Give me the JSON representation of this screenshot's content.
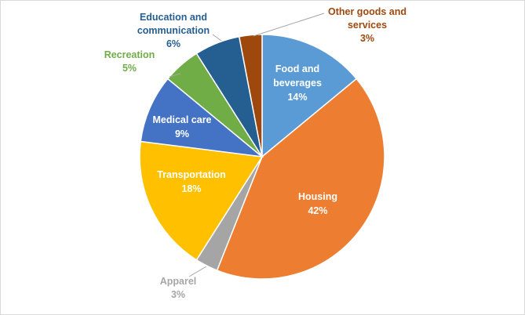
{
  "chart_data": {
    "type": "pie",
    "title": "",
    "start_angle_deg": 0,
    "direction": "clockwise",
    "slices": [
      {
        "name": "Food and beverages",
        "value": 14,
        "pct": "14%",
        "color": "#5b9bd5",
        "label_lines": [
          "Food and",
          "beverages",
          "14%"
        ],
        "label_style": "inside"
      },
      {
        "name": "Housing",
        "value": 42,
        "pct": "42%",
        "color": "#ed7d31",
        "label_lines": [
          "Housing",
          "42%"
        ],
        "label_style": "inside"
      },
      {
        "name": "Apparel",
        "value": 3,
        "pct": "3%",
        "color": "#a5a5a5",
        "label_lines": [
          "Apparel",
          "3%"
        ],
        "label_style": "outside-gray"
      },
      {
        "name": "Transportation",
        "value": 18,
        "pct": "18%",
        "color": "#ffc000",
        "label_lines": [
          "Transportation",
          "18%"
        ],
        "label_style": "inside"
      },
      {
        "name": "Medical care",
        "value": 9,
        "pct": "9%",
        "color": "#4472c4",
        "label_lines": [
          "Medical care",
          "9%"
        ],
        "label_style": "inside"
      },
      {
        "name": "Recreation",
        "value": 5,
        "pct": "5%",
        "color": "#70ad47",
        "label_lines": [
          "Recreation",
          "5%"
        ],
        "label_style": "outside-color"
      },
      {
        "name": "Education and communication",
        "value": 6,
        "pct": "6%",
        "color": "#255e91",
        "label_lines": [
          "Education and",
          "communication",
          "6%"
        ],
        "label_style": "outside-color"
      },
      {
        "name": "Other goods and services",
        "value": 3,
        "pct": "3%",
        "color": "#9e480e",
        "label_lines": [
          "Other goods and",
          "services",
          "3%"
        ],
        "label_style": "outside-color"
      }
    ]
  }
}
